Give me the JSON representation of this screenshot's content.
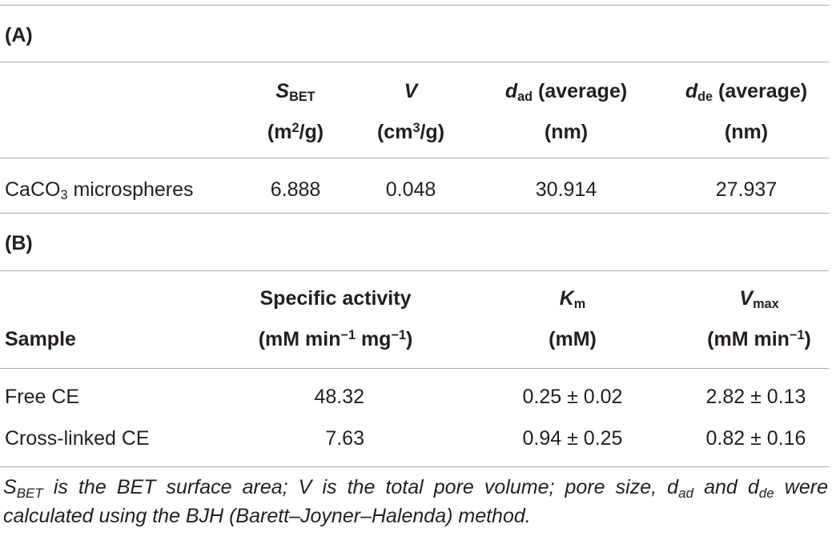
{
  "table_a": {
    "label": "(A)",
    "headers": {
      "sbet_main": "S",
      "sbet_sub": "BET",
      "sbet_unit_pre": "(m",
      "sbet_unit_sup": "2",
      "sbet_unit_post": "/g)",
      "v_main": "V",
      "v_unit_pre": "(cm",
      "v_unit_sup": "3",
      "v_unit_post": "/g)",
      "dad_main": "d",
      "dad_sub": "ad",
      "dad_rest": " (average)",
      "dad_unit": "(nm)",
      "dde_main": "d",
      "dde_sub": "de",
      "dde_rest": " (average)",
      "dde_unit": "(nm)"
    },
    "row": {
      "name_pre": "CaCO",
      "name_sub": "3",
      "name_post": " microspheres",
      "sbet": "6.888",
      "v": "0.048",
      "dad": "30.914",
      "dde": "27.937"
    }
  },
  "table_b": {
    "label": "(B)",
    "headers": {
      "sample": "Sample",
      "sa_title": "Specific activity",
      "sa_unit_1": "(mM min",
      "sa_unit_sup1": "−1",
      "sa_unit_2": " mg",
      "sa_unit_sup2": "−1",
      "sa_unit_3": ")",
      "km_main": "K",
      "km_sub": "m",
      "km_unit": "(mM)",
      "vmax_main": "V",
      "vmax_sub": "max",
      "vmax_unit_1": "(mM min",
      "vmax_unit_sup": "−1",
      "vmax_unit_2": ")"
    },
    "rows": [
      {
        "sample": "Free CE",
        "sa": "48.32",
        "km": "0.25 ± 0.02",
        "vmax": "2.82 ± 0.13"
      },
      {
        "sample": "Cross-linked CE",
        "sa": "7.63",
        "km": "0.94 ± 0.25",
        "vmax": "0.82 ± 0.16"
      }
    ]
  },
  "footnote": {
    "s_main": "S",
    "s_sub": "BET",
    "part1": " is the BET surface area; V is the total pore volume; pore size, d",
    "dad_sub": "ad",
    "part2": " and d",
    "dde_sub": "de",
    "part3": " were calculated using the BJH (Barett–Joyner–Halenda) method."
  }
}
